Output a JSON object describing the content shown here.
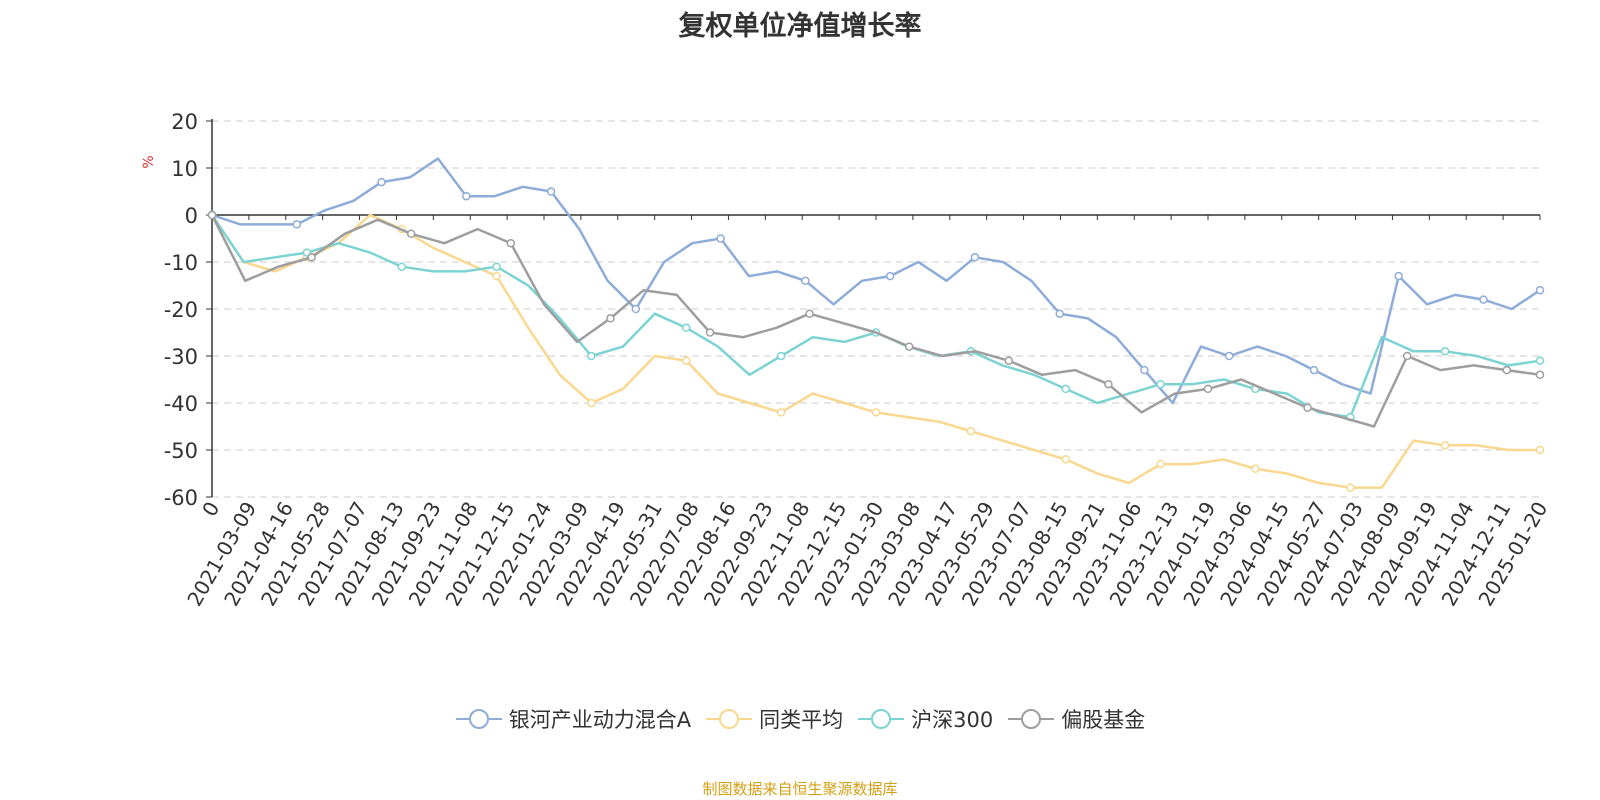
{
  "title": "复权单位净值增长率",
  "source": "制图数据来自恒生聚源数据库",
  "chart_data": {
    "type": "line",
    "ylabel": "%",
    "ylim": [
      -60,
      20
    ],
    "yticks": [
      20,
      10,
      0,
      -10,
      -20,
      -30,
      -40,
      -50,
      -60
    ],
    "grid": true,
    "legend_position": "bottom",
    "xlabels": [
      "0",
      "2021-03-09",
      "2021-04-16",
      "2021-05-28",
      "2021-07-07",
      "2021-08-13",
      "2021-09-23",
      "2021-11-08",
      "2021-12-15",
      "2022-01-24",
      "2022-03-09",
      "2022-04-19",
      "2022-05-31",
      "2022-07-08",
      "2022-08-16",
      "2022-09-23",
      "2022-11-08",
      "2022-12-15",
      "2023-01-30",
      "2023-03-08",
      "2023-04-17",
      "2023-05-29",
      "2023-07-07",
      "2023-08-15",
      "2023-09-21",
      "2023-11-06",
      "2023-12-13",
      "2024-01-19",
      "2024-03-06",
      "2024-04-15",
      "2024-05-27",
      "2024-07-03",
      "2024-08-09",
      "2024-09-19",
      "2024-11-04",
      "2024-12-11",
      "2025-01-20"
    ],
    "series": [
      {
        "name": "银河产业动力混合A",
        "color": "#8eacd9",
        "values": [
          0,
          -2,
          -2,
          -2,
          1,
          3,
          7,
          8,
          12,
          4,
          4,
          6,
          5,
          -3,
          -14,
          -20,
          -10,
          -6,
          -5,
          -13,
          -12,
          -14,
          -19,
          -14,
          -13,
          -10,
          -14,
          -9,
          -10,
          -14,
          -21,
          -22,
          -26,
          -33,
          -40,
          -28,
          -30,
          -28,
          -30,
          -33,
          -36,
          -38,
          -13,
          -19,
          -17,
          -18,
          -20,
          -16
        ]
      },
      {
        "name": "同类平均",
        "color": "#fad78f",
        "values": [
          0,
          -10,
          -12,
          -9,
          -6,
          0,
          -3,
          -7,
          -10,
          -13,
          -24,
          -34,
          -40,
          -37,
          -30,
          -31,
          -38,
          -40,
          -42,
          -38,
          -40,
          -42,
          -43,
          -44,
          -46,
          -48,
          -50,
          -52,
          -55,
          -57,
          -53,
          -53,
          -52,
          -54,
          -55,
          -57,
          -58,
          -58,
          -48,
          -49,
          -49,
          -50,
          -50
        ]
      },
      {
        "name": "沪深300",
        "color": "#7dd3d3",
        "values": [
          0,
          -10,
          -9,
          -8,
          -6,
          -8,
          -11,
          -12,
          -12,
          -11,
          -15,
          -22,
          -30,
          -28,
          -21,
          -24,
          -28,
          -34,
          -30,
          -26,
          -27,
          -25,
          -28,
          -30,
          -29,
          -32,
          -34,
          -37,
          -40,
          -38,
          -36,
          -36,
          -35,
          -37,
          -38,
          -42,
          -43,
          -26,
          -29,
          -29,
          -30,
          -32,
          -31
        ]
      },
      {
        "name": "偏股基金",
        "color": "#9e9e9e",
        "values": [
          0,
          -14,
          -11,
          -9,
          -4,
          -1,
          -4,
          -6,
          -3,
          -6,
          -19,
          -27,
          -22,
          -16,
          -17,
          -25,
          -26,
          -24,
          -21,
          -23,
          -25,
          -28,
          -30,
          -29,
          -31,
          -34,
          -33,
          -36,
          -42,
          -38,
          -37,
          -35,
          -38,
          -41,
          -43,
          -45,
          -30,
          -33,
          -32,
          -33,
          -34
        ]
      }
    ]
  }
}
